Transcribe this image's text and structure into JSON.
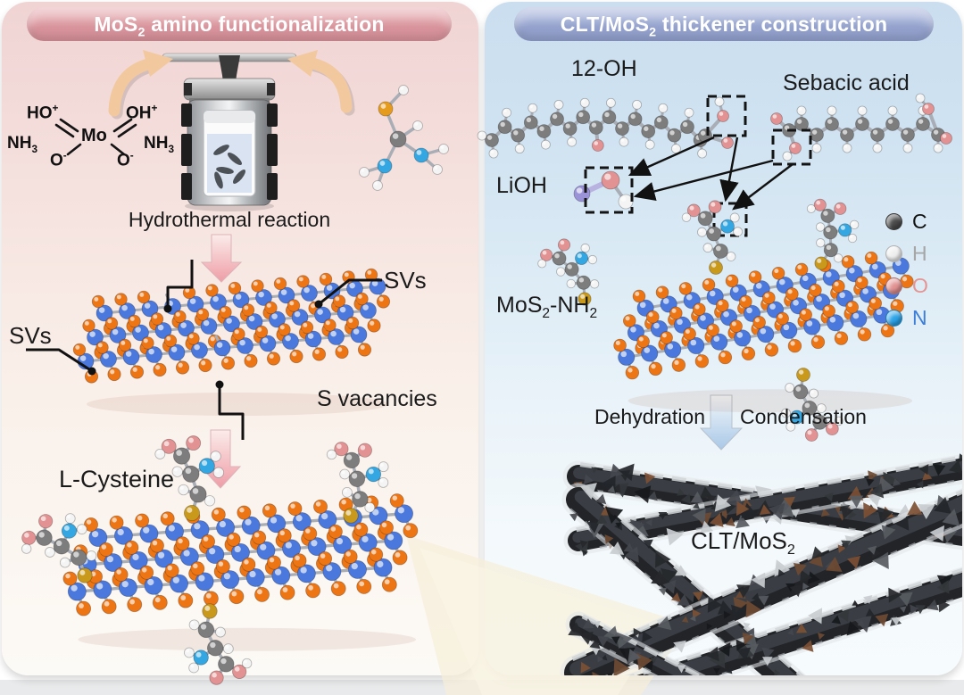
{
  "atoms": {
    "S": "#ed7514",
    "Mo": "#4a78dd",
    "C": "#7d7d7d",
    "H": "#f4f4f4",
    "O": "#e29292",
    "N": "#34a7e2",
    "Li": "#9a93d8",
    "S_thiol": "#c9991c",
    "S_amber": "#e59b1e"
  },
  "colors": {
    "stick": "#a9aeb6",
    "text": "#1a1a1a",
    "tan_arrow": "#f2c89e",
    "pink_arrow_light": "#fbecea",
    "pink_arrow_deep": "#ee9da6",
    "blue_arrow_light": "#f3f8fb",
    "blue_arrow_deep": "#a9c8e7",
    "left_banner": "#d8939b",
    "right_banner": "#93a1cc",
    "fiber_dark": "#222428",
    "beam": "#f6efd9"
  },
  "left_panel": {
    "header": {
      "p1": "MoS",
      "sub": "2",
      "p2": " amino functionalization"
    },
    "formula": {
      "ho_plus": {
        "base": "HO",
        "sup": "+"
      },
      "oh_plus": {
        "base": "OH",
        "sup": "+"
      },
      "nh3_left": {
        "base": "NH",
        "sub": "3"
      },
      "nh3_right": {
        "base": "NH",
        "sub": "3"
      },
      "o_minus_left": {
        "base": "O",
        "sup": "-"
      },
      "o_minus_right": {
        "base": "O",
        "sup": "-"
      },
      "mo": "Mo"
    },
    "hydrothermal_label": "Hydrothermal reaction",
    "svs_left": "SVs",
    "svs_right": "SVs",
    "s_vacancies_label": "S vacancies",
    "l_cysteine_label": "L-Cysteine"
  },
  "right_panel": {
    "header": {
      "p1": "CLT/MoS",
      "sub": "2",
      "p2": " thickener construction"
    },
    "labels": {
      "oh12": "12-OH",
      "sebacic": "Sebacic acid",
      "lioh": "LiOH",
      "mos2nh2": {
        "p1": "MoS",
        "s1": "2",
        "p2": "-NH",
        "s2": "2"
      },
      "dehydration": "Dehydration",
      "condensation": "Condensation",
      "clt": {
        "p1": "CLT/MoS",
        "s1": "2"
      }
    },
    "legend": [
      {
        "symbol": "C",
        "ball": "#4a4a4a",
        "text": "#111111"
      },
      {
        "symbol": "H",
        "ball": "#eeeeee",
        "text": "#a6a6a6"
      },
      {
        "symbol": "O",
        "ball": "#e29292",
        "text": "#e59494"
      },
      {
        "symbol": "N",
        "ball": "#2ba3e8",
        "text": "#3d7fd8"
      }
    ]
  }
}
